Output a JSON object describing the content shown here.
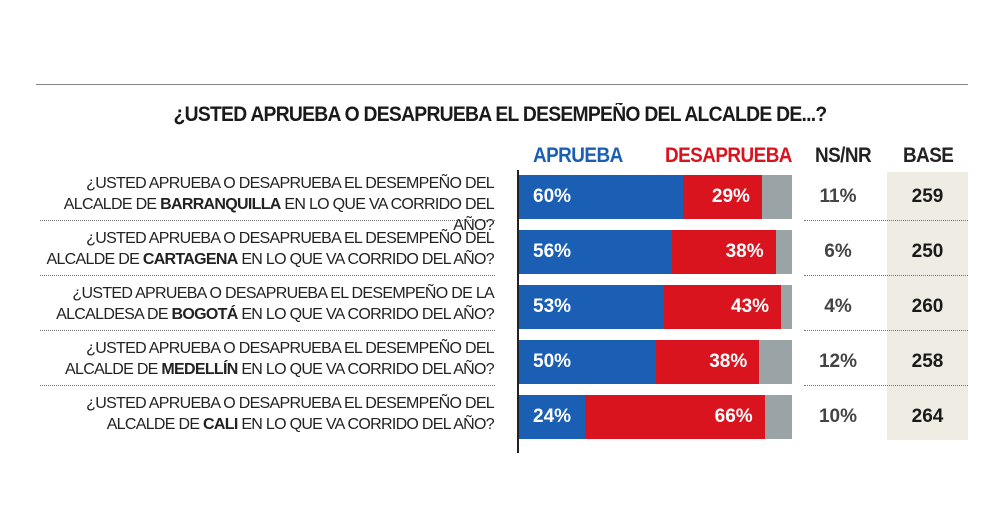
{
  "chart_data": {
    "type": "bar",
    "stacked": true,
    "orientation": "horizontal",
    "title": "¿USTED APRUEBA O DESAPRUEBA EL DESEMPEÑO DEL ALCALDE DE...?",
    "column_headers": {
      "aprueba": "APRUEBA",
      "desaprueba": "DESAPRUEBA",
      "nsnr": "NS/NR",
      "base": "BASE"
    },
    "colors": {
      "aprueba": "#1a5fb4",
      "desaprueba": "#d9141e",
      "nsnr": "#9aa3a6",
      "base_bg": "#efede3"
    },
    "rows": [
      {
        "pre": "¿USTED APRUEBA O DESAPRUEBA EL DESEMPEÑO DEL ALCALDE DE ",
        "city": "BARRANQUILLA",
        "post": " EN LO QUE VA CORRIDO DEL AÑO?",
        "aprueba": 60,
        "desaprueba": 29,
        "nsnr": 11,
        "aprueba_label": "60%",
        "desaprueba_label": "29%",
        "nsnr_label": "11%",
        "base": "259"
      },
      {
        "pre": "¿USTED APRUEBA O DESAPRUEBA EL DESEMPEÑO DEL ALCALDE DE ",
        "city": "CARTAGENA",
        "post": " EN LO QUE VA CORRIDO DEL AÑO?",
        "aprueba": 56,
        "desaprueba": 38,
        "nsnr": 6,
        "aprueba_label": "56%",
        "desaprueba_label": "38%",
        "nsnr_label": "6%",
        "base": "250"
      },
      {
        "pre": "¿USTED APRUEBA O DESAPRUEBA EL DESEMPEÑO DE LA ALCALDESA DE ",
        "city": "BOGOTÁ",
        "post": " EN LO QUE VA CORRIDO DEL AÑO?",
        "aprueba": 53,
        "desaprueba": 43,
        "nsnr": 4,
        "aprueba_label": "53%",
        "desaprueba_label": "43%",
        "nsnr_label": "4%",
        "base": "260"
      },
      {
        "pre": "¿USTED APRUEBA O DESAPRUEBA EL DESEMPEÑO DEL ALCALDE DE ",
        "city": "MEDELLÍN",
        "post": " EN LO QUE VA CORRIDO DEL AÑO?",
        "aprueba": 50,
        "desaprueba": 38,
        "nsnr": 12,
        "aprueba_label": "50%",
        "desaprueba_label": "38%",
        "nsnr_label": "12%",
        "base": "258"
      },
      {
        "pre": "¿USTED APRUEBA O DESAPRUEBA EL DESEMPEÑO DEL ALCALDE DE ",
        "city": "CALI",
        "post": " EN LO QUE VA CORRIDO DEL AÑO?",
        "aprueba": 24,
        "desaprueba": 66,
        "nsnr": 10,
        "aprueba_label": "24%",
        "desaprueba_label": "66%",
        "nsnr_label": "10%",
        "base": "264"
      }
    ]
  }
}
